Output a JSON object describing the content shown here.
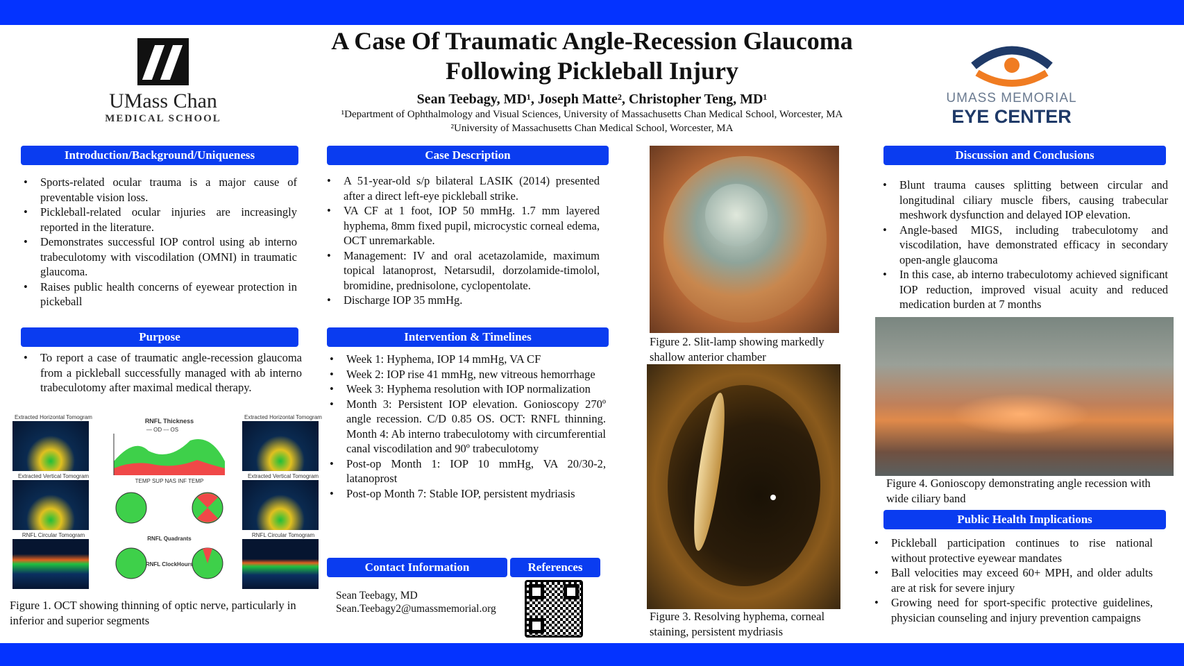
{
  "title": {
    "line1": "A Case Of Traumatic Angle-Recession Glaucoma",
    "line2": "Following Pickleball Injury"
  },
  "authors": "Sean Teebagy, MD¹, Joseph Matte², Christopher Teng, MD¹",
  "affiliation1": "¹Department of Ophthalmology and Visual Sciences, University of Massachusetts Chan Medical School, Worcester, MA",
  "affiliation2": "²University of Massachusetts Chan Medical School, Worcester, MA",
  "logo_left": {
    "name": "UMass Chan",
    "sub": "MEDICAL SCHOOL"
  },
  "logo_right": {
    "line1": "UMASS MEMORIAL",
    "line2": "EYE CENTER"
  },
  "colors": {
    "header_blue": "#0a3cf0",
    "bar_blue": "#0433ff",
    "logo_orange": "#f07c22",
    "logo_navy": "#1f3a68"
  },
  "intro": {
    "heading": "Introduction/Background/Uniqueness",
    "items": [
      "Sports-related ocular trauma is a major cause of preventable vision loss.",
      "Pickleball-related ocular injuries are increasingly reported in the literature.",
      "Demonstrates successful IOP control using ab interno trabeculotomy with viscodilation (OMNI) in traumatic glaucoma.",
      "Raises public health concerns of eyewear protection in pickeball"
    ]
  },
  "purpose": {
    "heading": "Purpose",
    "items": [
      "To report a case of traumatic angle-recession glaucoma from a pickleball successfully managed with ab interno trabeculotomy after maximal medical therapy."
    ]
  },
  "figure1": {
    "caption": "Figure 1. OCT showing thinning of optic nerve, particularly in inferior and superior segments",
    "labels": {
      "h_tomo": "Extracted Horizontal Tomogram",
      "v_tomo": "Extracted Vertical Tomogram",
      "c_tomo": "RNFL Circular Tomogram",
      "thickness": "RNFL Thickness",
      "legend": "— OD  --- OS",
      "axis": "TEMP   SUP   NAS   INF   TEMP",
      "quadrants": "RNFL Quadrants",
      "clock": "RNFL ClockHours"
    }
  },
  "case": {
    "heading": "Case Description",
    "items": [
      "A 51-year-old s/p bilateral LASIK (2014) presented after a direct left-eye pickleball strike.",
      "VA CF at 1 foot, IOP 50 mmHg. 1.7 mm layered hyphema, 8mm fixed pupil, microcystic corneal edema, OCT unremarkable.",
      "Management: IV and oral acetazolamide, maximum topical latanoprost, Netarsudil, dorzolamide-timolol, bromidine, prednisolone, cyclopentolate.",
      "Discharge IOP 35 mmHg."
    ]
  },
  "intervention": {
    "heading": "Intervention & Timelines",
    "items": [
      "Week 1: Hyphema, IOP 14 mmHg, VA CF",
      "Week 2: IOP rise 41 mmHg, new vitreous hemorrhage",
      "Week 3: Hyphema resolution with IOP normalization",
      "Month 3: Persistent IOP elevation. Gonioscopy 270º angle recession. C/D 0.85 OS. OCT: RNFL thinning. Month 4: Ab interno trabeculotomy with circumferential canal viscodilation and 90º trabeculotomy",
      "Post-op Month 1: IOP 10 mmHg, VA 20/30-2, latanoprost",
      "Post-op Month 7: Stable IOP, persistent mydriasis"
    ]
  },
  "contact": {
    "heading": "Contact Information",
    "name": "Sean Teebagy, MD",
    "email": "Sean.Teebagy2@umassmemorial.org"
  },
  "references": {
    "heading": "References"
  },
  "figure2": {
    "caption": "Figure 2. Slit-lamp showing markedly shallow anterior chamber"
  },
  "figure3": {
    "caption": "Figure 3. Resolving hyphema, corneal staining, persistent mydriasis"
  },
  "figure4": {
    "caption": "Figure 4. Gonioscopy demonstrating angle recession with wide ciliary band"
  },
  "discussion": {
    "heading": "Discussion and Conclusions",
    "items": [
      "Blunt trauma causes splitting between circular and longitudinal ciliary muscle fibers, causing trabecular meshwork dysfunction and delayed IOP elevation.",
      "Angle-based MIGS, including trabeculotomy and viscodilation, have demonstrated efficacy in secondary open-angle glaucoma",
      "In this case, ab interno trabeculotomy achieved significant IOP reduction, improved visual acuity and reduced medication burden at 7 months"
    ]
  },
  "public_health": {
    "heading": "Public Health Implications",
    "items": [
      "Pickleball participation continues to rise national without protective eyewear mandates",
      "Ball velocities may exceed 60+ MPH, and older adults are at risk for severe injury",
      "Growing need for sport-specific protective guidelines, physician counseling and injury prevention campaigns"
    ]
  }
}
